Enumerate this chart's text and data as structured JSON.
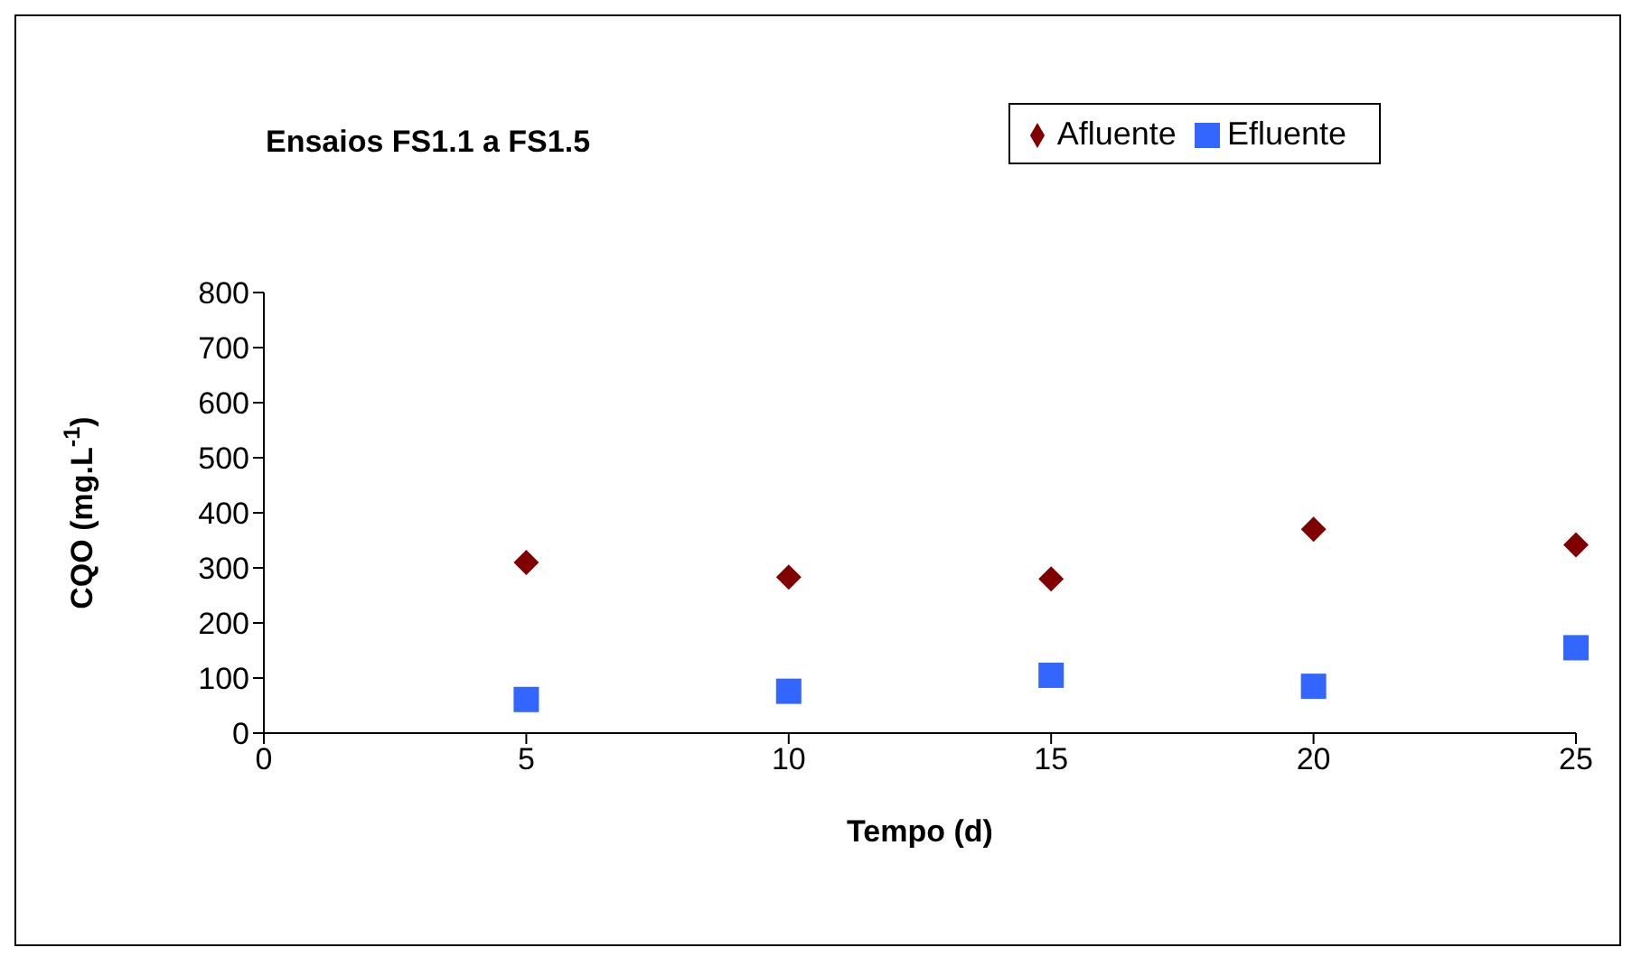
{
  "chart_data": {
    "type": "scatter",
    "title": "Ensaios FS1.1 a FS1.5",
    "xlabel": "Tempo (d)",
    "ylabel": "CQO (mg.L$^{-1}$)",
    "x": [
      5,
      10,
      15,
      20,
      25
    ],
    "series": [
      {
        "name": "Afluente",
        "color": "#800000",
        "marker": "diamond",
        "values": [
          310,
          283,
          280,
          370,
          342
        ]
      },
      {
        "name": "Efluente",
        "color": "#3366ff",
        "marker": "square",
        "values": [
          61,
          76,
          105,
          85,
          155
        ]
      }
    ],
    "xlim": [
      0,
      25
    ],
    "xticks": [
      0,
      5,
      10,
      15,
      20,
      25
    ],
    "ylim": [
      0,
      800
    ],
    "yticks": [
      0,
      100,
      200,
      300,
      400,
      500,
      600,
      700,
      800
    ],
    "grid": false,
    "legend": "top right"
  }
}
